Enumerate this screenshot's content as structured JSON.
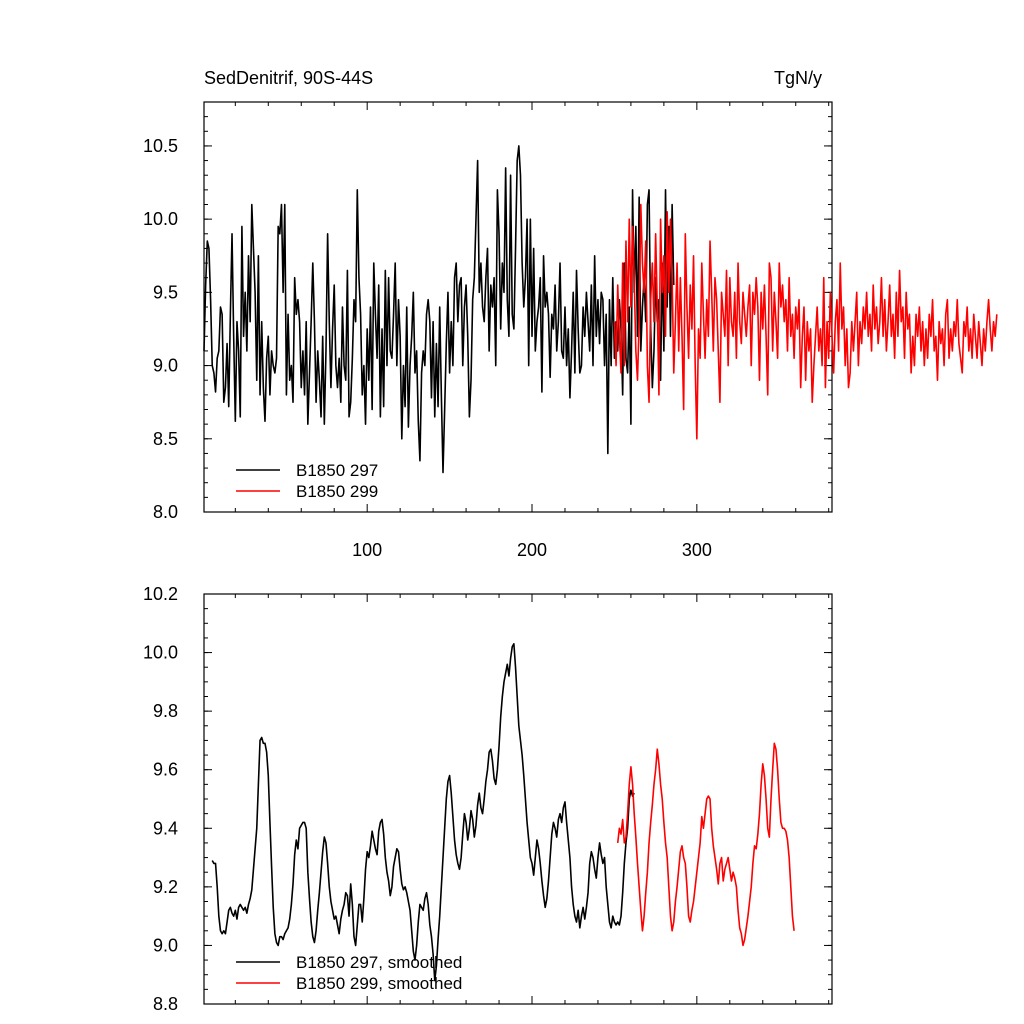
{
  "chart_data": [
    {
      "type": "line",
      "title": "SedDenitrif, 90S-44S",
      "units": "TgN/y",
      "xlim": [
        1,
        382
      ],
      "ylim": [
        8.0,
        10.8
      ],
      "xticks": [
        100,
        200,
        300
      ],
      "yticks": [
        8.0,
        8.5,
        9.0,
        9.5,
        10.0,
        10.5
      ],
      "ytick_labels": [
        "8.0",
        "8.5",
        "9.0",
        "9.5",
        "10.0",
        "10.5"
      ],
      "xtick_labels": [
        "100",
        "200",
        "300"
      ],
      "legend": [
        "B1850 297",
        "B1850 299"
      ],
      "series": [
        {
          "name": "B1850 297",
          "color": "#000000",
          "x_start": 1,
          "values": [
            9.1,
            9.55,
            9.85,
            9.8,
            9.45,
            9.0,
            8.95,
            8.82,
            9.05,
            9.1,
            9.4,
            9.35,
            8.75,
            8.85,
            9.15,
            8.72,
            9.35,
            9.9,
            9.2,
            8.62,
            9.3,
            9.1,
            8.65,
            9.95,
            9.2,
            9.5,
            9.1,
            9.75,
            9.3,
            10.1,
            9.8,
            9.5,
            8.9,
            9.75,
            8.8,
            9.3,
            8.85,
            8.62,
            9.05,
            9.2,
            8.8,
            9.1,
            9.0,
            8.95,
            9.05,
            9.95,
            9.9,
            10.1,
            9.5,
            10.1,
            8.8,
            9.35,
            8.9,
            9.0,
            8.75,
            9.6,
            9.35,
            9.45,
            9.3,
            8.85,
            9.1,
            8.8,
            9.3,
            8.6,
            8.95,
            9.3,
            9.7,
            9.3,
            8.75,
            9.1,
            8.9,
            8.65,
            9.2,
            8.6,
            9.1,
            9.9,
            9.3,
            8.85,
            9.25,
            9.55,
            9.0,
            8.85,
            9.05,
            8.75,
            9.4,
            9.0,
            8.9,
            9.65,
            8.65,
            8.75,
            9.05,
            9.45,
            9.3,
            10.2,
            9.6,
            9.35,
            8.8,
            9.0,
            8.6,
            9.25,
            8.9,
            9.4,
            8.7,
            9.7,
            9.35,
            9.05,
            9.55,
            8.65,
            9.25,
            8.72,
            9.65,
            9.0,
            9.6,
            9.1,
            9.05,
            9.35,
            9.7,
            9.0,
            9.45,
            9.2,
            8.5,
            9.0,
            8.72,
            9.4,
            8.58,
            9.0,
            9.2,
            9.5,
            8.95,
            9.1,
            8.62,
            8.35,
            8.95,
            9.1,
            9.0,
            9.35,
            9.45,
            9.3,
            8.78,
            9.3,
            8.65,
            9.15,
            8.72,
            9.4,
            8.8,
            8.27,
            8.7,
            9.15,
            9.5,
            8.95,
            9.3,
            9.0,
            9.6,
            9.7,
            9.3,
            9.55,
            9.6,
            9.0,
            9.4,
            9.55,
            9.2,
            8.65,
            8.9,
            9.45,
            9.6,
            10.0,
            10.4,
            9.5,
            9.7,
            9.4,
            9.3,
            9.6,
            9.8,
            9.1,
            9.55,
            9.4,
            9.6,
            9.0,
            10.2,
            9.9,
            9.25,
            9.7,
            9.5,
            10.35,
            9.45,
            9.2,
            10.3,
            9.35,
            9.25,
            9.8,
            10.4,
            10.5,
            10.3,
            9.7,
            9.4,
            9.6,
            10.0,
            9.0,
            10.0,
            9.2,
            9.8,
            9.1,
            9.3,
            9.4,
            9.6,
            8.82,
            9.75,
            9.4,
            9.5,
            9.35,
            8.92,
            9.35,
            9.25,
            9.55,
            9.1,
            9.3,
            9.7,
            9.1,
            9.05,
            9.4,
            9.0,
            9.25,
            8.78,
            9.1,
            9.5,
            8.95,
            9.65,
            9.25,
            8.95,
            9.0,
            9.4,
            9.2,
            9.5,
            9.3,
            9.1,
            9.55,
            9.0,
            9.75,
            9.2,
            9.45,
            9.15,
            9.5,
            9.45,
            9.0,
            9.35,
            8.4,
            9.45,
            9.0,
            9.6,
            9.05,
            9.3,
            9.1,
            9.45,
            9.25,
            8.8,
            9.7,
            9.05,
            8.95,
            9.4,
            8.6,
            10.2,
            9.5,
            9.95,
            9.2,
            10.15,
            9.1,
            9.4,
            9.6,
            9.3,
            10.1,
            10.2,
            9.25,
            8.85,
            9.1,
            9.6,
            9.3,
            9.45,
            8.9,
            9.7,
            9.1,
            10.2,
            9.4,
            9.95,
            9.2,
            10.1,
            9.55
          ]
        },
        {
          "name": "B1850 299",
          "color": "#ff0000",
          "x_start": 250,
          "values": [
            9.3,
            9.0,
            9.55,
            9.2,
            8.95,
            9.7,
            9.0,
            9.85,
            9.3,
            10.0,
            9.4,
            9.95,
            9.6,
            9.1,
            8.9,
            9.3,
            10.1,
            9.7,
            9.5,
            9.85,
            9.0,
            8.75,
            9.45,
            9.7,
            9.3,
            9.9,
            9.4,
            8.8,
            10.0,
            9.5,
            9.75,
            9.2,
            10.05,
            9.5,
            10.0,
            9.6,
            8.95,
            9.3,
            9.7,
            9.1,
            9.6,
            9.2,
            8.7,
            9.9,
            9.4,
            9.05,
            9.55,
            9.25,
            9.75,
            9.0,
            8.5,
            9.25,
            9.05,
            9.7,
            9.35,
            9.05,
            9.45,
            9.2,
            9.85,
            9.5,
            9.1,
            9.6,
            9.45,
            9.1,
            8.75,
            9.5,
            9.35,
            9.2,
            9.65,
            9.0,
            9.6,
            9.3,
            9.2,
            9.5,
            9.05,
            9.7,
            9.3,
            9.15,
            9.5,
            9.35,
            9.2,
            9.4,
            9.55,
            9.0,
            9.5,
            9.35,
            9.6,
            9.4,
            8.9,
            9.5,
            9.25,
            9.55,
            9.2,
            8.8,
            9.7,
            9.6,
            9.1,
            9.5,
            9.3,
            9.05,
            9.7,
            9.4,
            9.55,
            9.3,
            9.45,
            9.1,
            9.6,
            9.2,
            9.35,
            9.05,
            9.4,
            9.25,
            9.45,
            8.85,
            9.2,
            9.4,
            8.9,
            9.3,
            9.1,
            9.25,
            8.75,
            9.0,
            9.2,
            9.4,
            9.1,
            9.25,
            9.0,
            9.6,
            8.85,
            9.3,
            9.05,
            9.5,
            9.2,
            8.95,
            9.3,
            9.45,
            9.1,
            9.7,
            9.25,
            9.4,
            9.0,
            9.25,
            8.85,
            8.95,
            9.3,
            9.1,
            9.3,
            9.5,
            9.0,
            9.3,
            9.15,
            9.4,
            9.25,
            9.5,
            9.2,
            9.35,
            9.1,
            9.55,
            9.25,
            9.4,
            9.15,
            9.3,
            9.6,
            9.2,
            9.45,
            9.1,
            9.3,
            9.55,
            9.2,
            9.35,
            9.05,
            9.5,
            9.2,
            9.65,
            9.3,
            9.4,
            9.05,
            9.5,
            9.25,
            9.35,
            8.95,
            9.2,
            9.0,
            9.35,
            9.2,
            9.4,
            9.1,
            9.3,
            9.0,
            9.25,
            9.05,
            9.35,
            9.2,
            9.45,
            9.1,
            9.2,
            8.9,
            9.3,
            9.15,
            9.25,
            9.0,
            9.35,
            9.45,
            9.05,
            9.25,
            9.1,
            9.3,
            9.2,
            9.45,
            9.15,
            9.05,
            8.95,
            9.3,
            9.2,
            9.4,
            9.1,
            9.25,
            9.05,
            9.35,
            9.2,
            9.05,
            9.3,
            9.15,
            9.0,
            9.25,
            9.1,
            9.3,
            9.45,
            9.25,
            9.1,
            9.3,
            9.2,
            9.35
          ]
        }
      ]
    },
    {
      "type": "line",
      "xlim": [
        1,
        382
      ],
      "ylim": [
        8.8,
        10.2
      ],
      "xticks": [
        100,
        200,
        300
      ],
      "yticks": [
        8.8,
        9.0,
        9.2,
        9.4,
        9.6,
        9.8,
        10.0,
        10.2
      ],
      "ytick_labels": [
        "8.8",
        "9.0",
        "9.2",
        "9.4",
        "9.6",
        "9.8",
        "10.0",
        "10.2"
      ],
      "legend": [
        "B1850 297, smoothed",
        "B1850 299, smoothed"
      ],
      "series": [
        {
          "name": "B1850 297, smoothed",
          "color": "#000000",
          "x_start": 6,
          "values": [
            9.29,
            9.28,
            9.28,
            9.2,
            9.1,
            9.05,
            9.04,
            9.05,
            9.04,
            9.08,
            9.12,
            9.13,
            9.11,
            9.1,
            9.12,
            9.09,
            9.13,
            9.14,
            9.13,
            9.12,
            9.13,
            9.11,
            9.14,
            9.16,
            9.19,
            9.26,
            9.33,
            9.4,
            9.55,
            9.7,
            9.71,
            9.69,
            9.69,
            9.66,
            9.58,
            9.42,
            9.27,
            9.13,
            9.04,
            9.01,
            9.0,
            9.03,
            9.03,
            9.02,
            9.04,
            9.05,
            9.06,
            9.09,
            9.14,
            9.21,
            9.31,
            9.36,
            9.33,
            9.4,
            9.41,
            9.42,
            9.42,
            9.4,
            9.25,
            9.16,
            9.08,
            9.03,
            9.01,
            9.05,
            9.12,
            9.18,
            9.25,
            9.32,
            9.37,
            9.35,
            9.28,
            9.2,
            9.15,
            9.12,
            9.09,
            9.1,
            9.07,
            9.04,
            9.09,
            9.12,
            9.14,
            9.18,
            9.17,
            9.1,
            9.21,
            9.14,
            9.03,
            9.0,
            9.07,
            9.14,
            9.14,
            9.08,
            9.16,
            9.26,
            9.32,
            9.3,
            9.34,
            9.39,
            9.36,
            9.33,
            9.31,
            9.39,
            9.42,
            9.43,
            9.38,
            9.3,
            9.25,
            9.22,
            9.17,
            9.2,
            9.27,
            9.3,
            9.33,
            9.32,
            9.26,
            9.21,
            9.19,
            9.2,
            9.18,
            9.15,
            9.12,
            9.05,
            8.98,
            8.95,
            9.0,
            9.08,
            9.14,
            9.13,
            9.12,
            9.16,
            9.18,
            9.14,
            9.07,
            9.03,
            8.97,
            8.88,
            8.93,
            9.02,
            9.1,
            9.2,
            9.3,
            9.4,
            9.5,
            9.56,
            9.58,
            9.52,
            9.44,
            9.36,
            9.31,
            9.28,
            9.26,
            9.3,
            9.38,
            9.45,
            9.42,
            9.36,
            9.4,
            9.46,
            9.43,
            9.37,
            9.41,
            9.48,
            9.52,
            9.47,
            9.45,
            9.5,
            9.56,
            9.6,
            9.66,
            9.67,
            9.63,
            9.57,
            9.55,
            9.6,
            9.68,
            9.78,
            9.85,
            9.9,
            9.93,
            9.96,
            9.92,
            9.98,
            10.02,
            10.03,
            9.95,
            9.85,
            9.75,
            9.7,
            9.65,
            9.58,
            9.5,
            9.42,
            9.36,
            9.3,
            9.28,
            9.24,
            9.3,
            9.36,
            9.33,
            9.28,
            9.22,
            9.17,
            9.13,
            9.16,
            9.22,
            9.3,
            9.38,
            9.42,
            9.4,
            9.37,
            9.43,
            9.45,
            9.42,
            9.47,
            9.49,
            9.42,
            9.36,
            9.3,
            9.2,
            9.14,
            9.1,
            9.08,
            9.12,
            9.06,
            9.1,
            9.13,
            9.09,
            9.13,
            9.18,
            9.28,
            9.32,
            9.3,
            9.26,
            9.23,
            9.3,
            9.35,
            9.31,
            9.28,
            9.3,
            9.2,
            9.14,
            9.08,
            9.06,
            9.1,
            9.08,
            9.07,
            9.08,
            9.07,
            9.1,
            9.18,
            9.28,
            9.35,
            9.4,
            9.5,
            9.53,
            9.51,
            9.52
          ]
        },
        {
          "name": "B1850 299, smoothed",
          "color": "#ff0000",
          "x_start": 252,
          "values": [
            9.35,
            9.4,
            9.38,
            9.43,
            9.35,
            9.37,
            9.45,
            9.55,
            9.61,
            9.55,
            9.45,
            9.37,
            9.28,
            9.2,
            9.12,
            9.05,
            9.1,
            9.18,
            9.25,
            9.35,
            9.42,
            9.48,
            9.55,
            9.6,
            9.67,
            9.62,
            9.55,
            9.5,
            9.42,
            9.35,
            9.3,
            9.2,
            9.1,
            9.05,
            9.08,
            9.15,
            9.2,
            9.26,
            9.32,
            9.34,
            9.3,
            9.28,
            9.2,
            9.1,
            9.08,
            9.12,
            9.15,
            9.2,
            9.25,
            9.3,
            9.35,
            9.44,
            9.4,
            9.45,
            9.5,
            9.51,
            9.5,
            9.4,
            9.34,
            9.3,
            9.26,
            9.21,
            9.28,
            9.3,
            9.22,
            9.26,
            9.28,
            9.3,
            9.26,
            9.22,
            9.25,
            9.23,
            9.2,
            9.12,
            9.06,
            9.04,
            9.0,
            9.02,
            9.06,
            9.1,
            9.15,
            9.2,
            9.28,
            9.34,
            9.33,
            9.38,
            9.45,
            9.55,
            9.62,
            9.58,
            9.5,
            9.4,
            9.37,
            9.5,
            9.6,
            9.69,
            9.67,
            9.6,
            9.5,
            9.42,
            9.4,
            9.4,
            9.39,
            9.36,
            9.3,
            9.2,
            9.1,
            9.05
          ]
        }
      ]
    }
  ]
}
